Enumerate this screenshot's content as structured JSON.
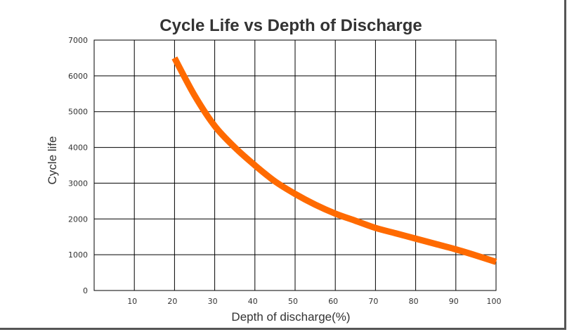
{
  "chart_data": {
    "type": "line",
    "title": "Cycle Life vs Depth of Discharge",
    "xlabel": "Depth of discharge(%)",
    "ylabel": "Cycle life",
    "xlim": [
      0,
      100
    ],
    "ylim": [
      0,
      7000
    ],
    "x_ticks": [
      10,
      20,
      30,
      40,
      50,
      60,
      70,
      80,
      90,
      100
    ],
    "y_ticks": [
      0,
      1000,
      2000,
      3000,
      4000,
      5000,
      6000,
      7000
    ],
    "grid": true,
    "series": [
      {
        "color": "#ff6a00",
        "x": [
          20,
          25,
          30,
          35,
          40,
          45,
          50,
          55,
          60,
          65,
          70,
          75,
          80,
          85,
          90,
          95,
          100
        ],
        "y": [
          6500,
          5450,
          4600,
          4000,
          3500,
          3050,
          2700,
          2400,
          2150,
          1950,
          1750,
          1600,
          1450,
          1300,
          1150,
          980,
          800
        ]
      }
    ]
  }
}
